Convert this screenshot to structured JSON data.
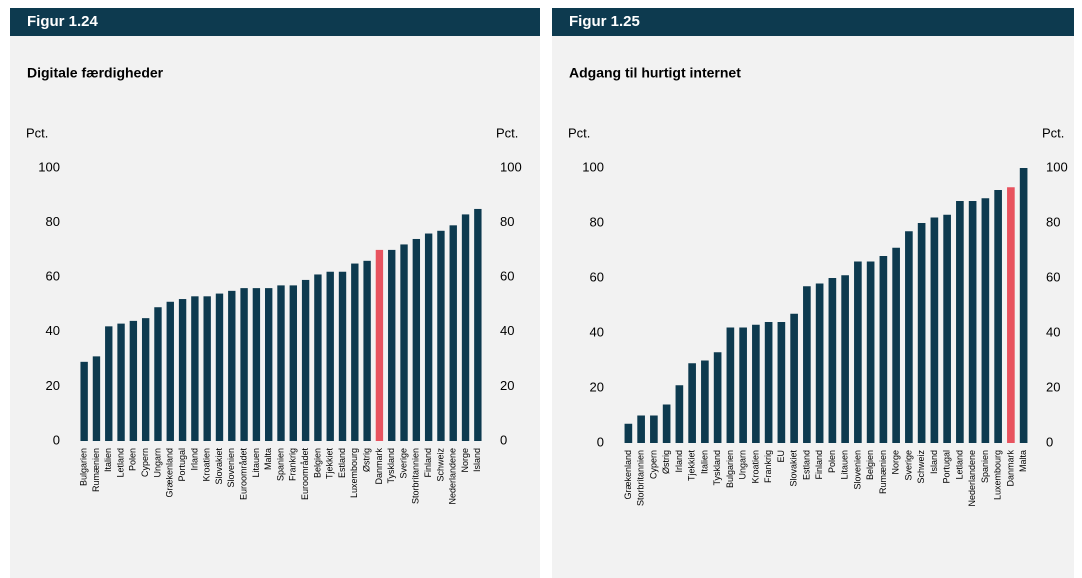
{
  "chart_data": [
    {
      "type": "bar",
      "label": "Figur 1.24",
      "title": "Digitale færdigheder",
      "ylabel": "Pct.",
      "y2label": "Pct.",
      "categories": [
        "Bulgarien",
        "Rumænien",
        "Italien",
        "Letland",
        "Polen",
        "Cypern",
        "Ungarn",
        "Grækenland",
        "Portugal",
        "Irland",
        "Kroatien",
        "Slovakiet",
        "Slovenien",
        "Euroområdet",
        "Litauen",
        "Malta",
        "Spanien",
        "Frankrig",
        "Euroområdet",
        "Belgien",
        "Tjekkiet",
        "Estland",
        "Luxembourg",
        "Østrig",
        "Danmark",
        "Tyskland",
        "Sverige",
        "Storbritannien",
        "Finland",
        "Schweiz",
        "Nederlandene",
        "Norge",
        "Island"
      ],
      "values": [
        29,
        31,
        42,
        43,
        44,
        45,
        49,
        51,
        52,
        53,
        53,
        54,
        55,
        56,
        56,
        56,
        57,
        57,
        59,
        61,
        62,
        62,
        65,
        66,
        70,
        70,
        72,
        74,
        76,
        77,
        79,
        83,
        85
      ],
      "color": "#0d3a4f",
      "highlight": {
        "category": "Danmark",
        "color": "#e8535f"
      },
      "ylim": [
        0,
        100
      ],
      "yticks": [
        0,
        20,
        40,
        60,
        80,
        100
      ],
      "y2lim": [
        0,
        100
      ],
      "y2ticks": [
        0,
        20,
        40,
        60,
        80,
        100
      ]
    },
    {
      "type": "bar",
      "label": "Figur 1.25",
      "title": "Adgang til hurtigt internet",
      "ylabel": "Pct.",
      "y2label": "Pct.",
      "categories": [
        "Grækenland",
        "Storbritannien",
        "Cypern",
        "Østrig",
        "Irland",
        "Tjekkiet",
        "Italien",
        "Tyskland",
        "Bulgarien",
        "Ungarn",
        "Kroatien",
        "Frankrig",
        "EU",
        "Slovakiet",
        "Estland",
        "Finland",
        "Polen",
        "Litauen",
        "Slovenien",
        "Belgien",
        "Rumænien",
        "Norge",
        "Sverige",
        "Schweiz",
        "Island",
        "Portugal",
        "Letland",
        "Nederlandene",
        "Spanien",
        "Luxembourg",
        "Danmark",
        "Malta"
      ],
      "values": [
        7,
        10,
        10,
        14,
        21,
        29,
        30,
        33,
        42,
        42,
        43,
        44,
        44,
        47,
        57,
        58,
        60,
        61,
        66,
        66,
        68,
        71,
        77,
        80,
        82,
        83,
        88,
        88,
        89,
        92,
        93,
        100
      ],
      "color": "#0d3a4f",
      "highlight": {
        "category": "Danmark",
        "color": "#e8535f"
      },
      "ylim": [
        0,
        100
      ],
      "yticks": [
        0,
        20,
        40,
        60,
        80,
        100
      ],
      "y2lim": [
        0,
        100
      ],
      "y2ticks": [
        0,
        20,
        40,
        60,
        80,
        100
      ]
    }
  ]
}
